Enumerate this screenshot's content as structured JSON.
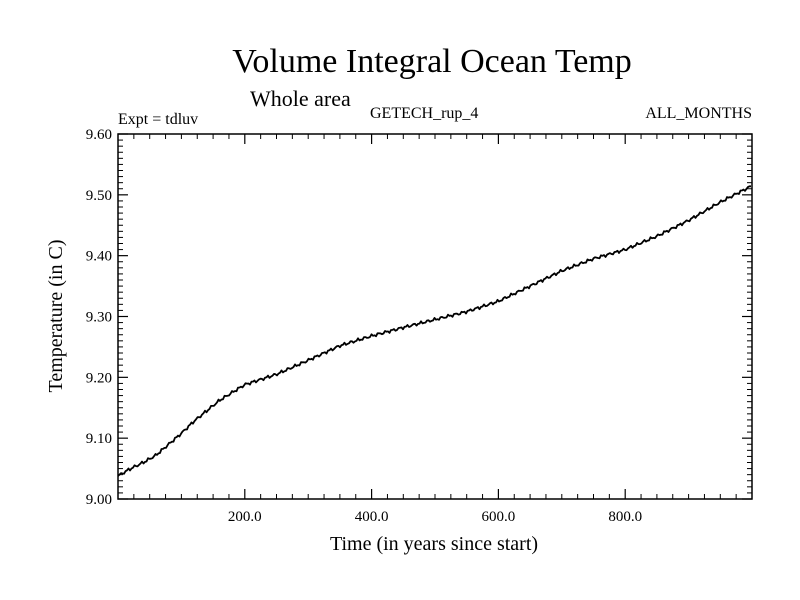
{
  "chart_data": {
    "type": "line",
    "title": "Volume Integral Ocean Temp",
    "subtitle": "Whole area",
    "header_left": "Expt = tdluv",
    "header_center": "GETECH_rup_4",
    "header_right": "ALL_MONTHS",
    "xlabel": "Time (in years since start)",
    "ylabel": "Temperature (in C)",
    "xlim": [
      0,
      1000
    ],
    "ylim": [
      9.0,
      9.6
    ],
    "xticks": [
      200,
      400,
      600,
      800
    ],
    "xtick_labels": [
      "200.0",
      "400.0",
      "600.0",
      "800.0"
    ],
    "yticks": [
      9.0,
      9.1,
      9.2,
      9.3,
      9.4,
      9.5,
      9.6
    ],
    "ytick_labels": [
      "9.00",
      "9.10",
      "9.20",
      "9.30",
      "9.40",
      "9.50",
      "9.60"
    ],
    "grid": false,
    "line_color": "#000000",
    "series": [
      {
        "x": [
          0,
          20,
          40,
          60,
          80,
          100,
          120,
          140,
          160,
          180,
          200,
          250,
          300,
          350,
          400,
          450,
          500,
          550,
          600,
          650,
          700,
          750,
          800,
          850,
          900,
          950,
          1000
        ],
        "values": [
          9.038,
          9.05,
          9.06,
          9.072,
          9.09,
          9.108,
          9.128,
          9.145,
          9.162,
          9.175,
          9.188,
          9.205,
          9.228,
          9.252,
          9.268,
          9.282,
          9.295,
          9.308,
          9.325,
          9.35,
          9.375,
          9.395,
          9.41,
          9.432,
          9.458,
          9.488,
          9.515
        ]
      }
    ]
  }
}
